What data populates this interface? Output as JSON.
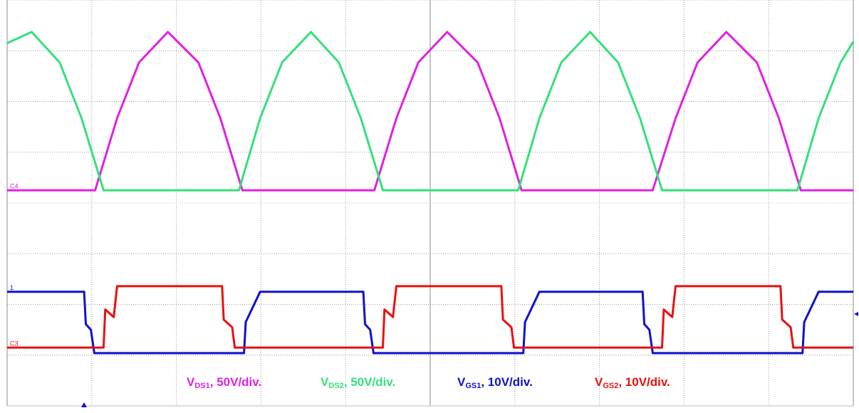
{
  "chart_data": {
    "type": "line",
    "xlim": [
      0,
      10
    ],
    "ylim": [
      0,
      8
    ],
    "xticks": [
      0,
      1,
      2,
      3,
      4,
      5,
      6,
      7,
      8,
      9,
      10
    ],
    "yticks": [
      0,
      1,
      2,
      3,
      4,
      5,
      6,
      7,
      8
    ],
    "grid": true,
    "series": [
      {
        "label": {
          "base": "V",
          "sub": "DS1",
          "suffix": ", 50V/div."
        },
        "channel_label": "C4",
        "color": "#e020e0",
        "x": [
          0,
          1.04,
          1.3,
          1.56,
          1.9,
          2.26,
          2.52,
          2.78,
          4.34,
          4.6,
          4.86,
          5.2,
          5.56,
          5.82,
          6.08,
          7.63,
          7.9,
          8.16,
          8.5,
          8.86,
          9.12,
          9.38,
          10
        ],
        "values": [
          4.25,
          4.25,
          5.67,
          6.77,
          7.37,
          6.77,
          5.67,
          4.25,
          4.25,
          5.67,
          6.77,
          7.37,
          6.77,
          5.67,
          4.25,
          4.25,
          5.67,
          6.77,
          7.37,
          6.77,
          5.67,
          4.25,
          4.25
        ]
      },
      {
        "label": {
          "base": "V",
          "sub": "DS2",
          "suffix": ", 50V/div."
        },
        "color": "#33e07a",
        "x": [
          0,
          0.29,
          0.62,
          0.88,
          1.14,
          2.74,
          2.99,
          3.25,
          3.59,
          3.92,
          4.18,
          4.44,
          6.04,
          6.29,
          6.55,
          6.89,
          7.22,
          7.48,
          7.74,
          9.34,
          9.59,
          9.85,
          10
        ],
        "values": [
          7.15,
          7.37,
          6.77,
          5.67,
          4.25,
          4.25,
          5.67,
          6.77,
          7.37,
          6.77,
          5.67,
          4.25,
          4.25,
          5.67,
          6.77,
          7.37,
          6.77,
          5.67,
          4.25,
          4.25,
          5.67,
          6.77,
          7.18
        ]
      },
      {
        "label": {
          "base": "V",
          "sub": "GS1",
          "suffix": ", 10V/div."
        },
        "channel_label": "1",
        "color": "#1010d0",
        "x": [
          0,
          0.91,
          0.93,
          0.99,
          1.03,
          2.8,
          2.82,
          2.99,
          4.21,
          4.23,
          4.29,
          4.33,
          6.1,
          6.12,
          6.29,
          7.51,
          7.53,
          7.59,
          7.63,
          9.4,
          9.42,
          9.59,
          10
        ],
        "values": [
          2.25,
          2.25,
          1.61,
          1.5,
          1.04,
          1.04,
          1.65,
          2.25,
          2.25,
          1.61,
          1.5,
          1.04,
          1.04,
          1.65,
          2.25,
          2.25,
          1.61,
          1.5,
          1.04,
          1.04,
          1.65,
          2.25,
          2.25
        ]
      },
      {
        "label": {
          "base": "V",
          "sub": "GS2",
          "suffix": ", 10V/div."
        },
        "channel_label": "C3",
        "color": "#e81010",
        "x": [
          0,
          1.14,
          1.16,
          1.26,
          1.3,
          2.54,
          2.56,
          2.66,
          2.69,
          4.44,
          4.46,
          4.56,
          4.6,
          5.84,
          5.86,
          5.96,
          5.99,
          7.74,
          7.76,
          7.86,
          7.9,
          9.14,
          9.16,
          9.26,
          9.29,
          10
        ],
        "values": [
          1.15,
          1.15,
          1.9,
          1.75,
          2.36,
          2.36,
          1.7,
          1.55,
          1.15,
          1.15,
          1.9,
          1.75,
          2.36,
          2.36,
          1.7,
          1.55,
          1.15,
          1.15,
          1.9,
          1.75,
          2.36,
          2.36,
          1.7,
          1.55,
          1.15,
          1.15
        ]
      }
    ]
  }
}
